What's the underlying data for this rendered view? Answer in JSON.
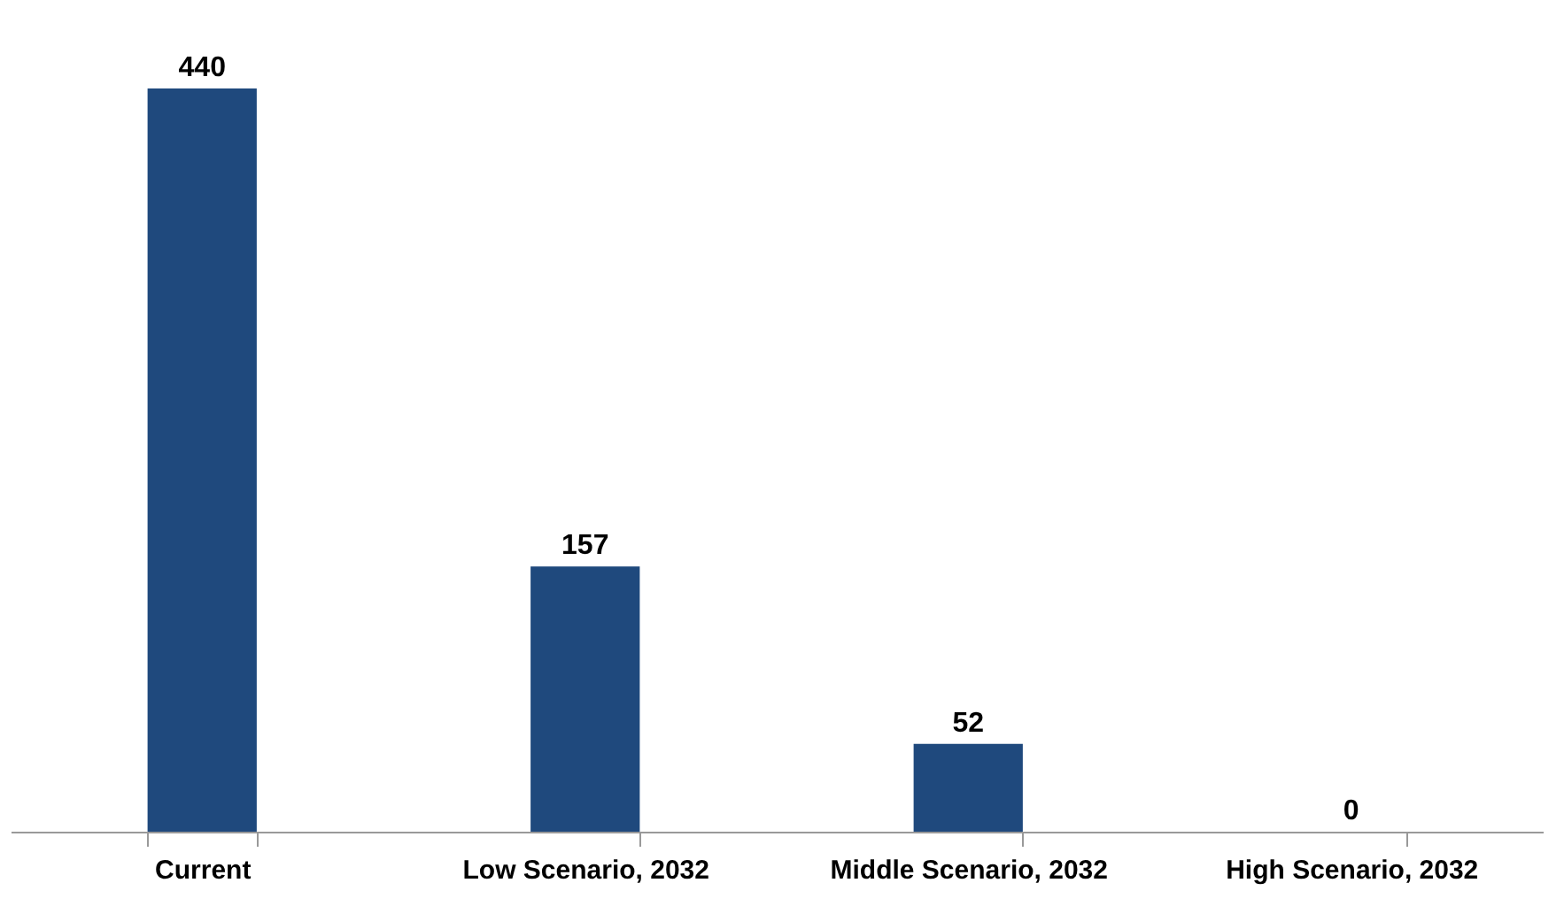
{
  "chart_data": {
    "type": "bar",
    "categories": [
      "Current",
      "Low Scenario, 2032",
      "Middle Scenario, 2032",
      "High Scenario, 2032"
    ],
    "values": [
      440,
      157,
      52,
      0
    ],
    "color": "#1f497d",
    "data_labels": true,
    "grid": false
  }
}
